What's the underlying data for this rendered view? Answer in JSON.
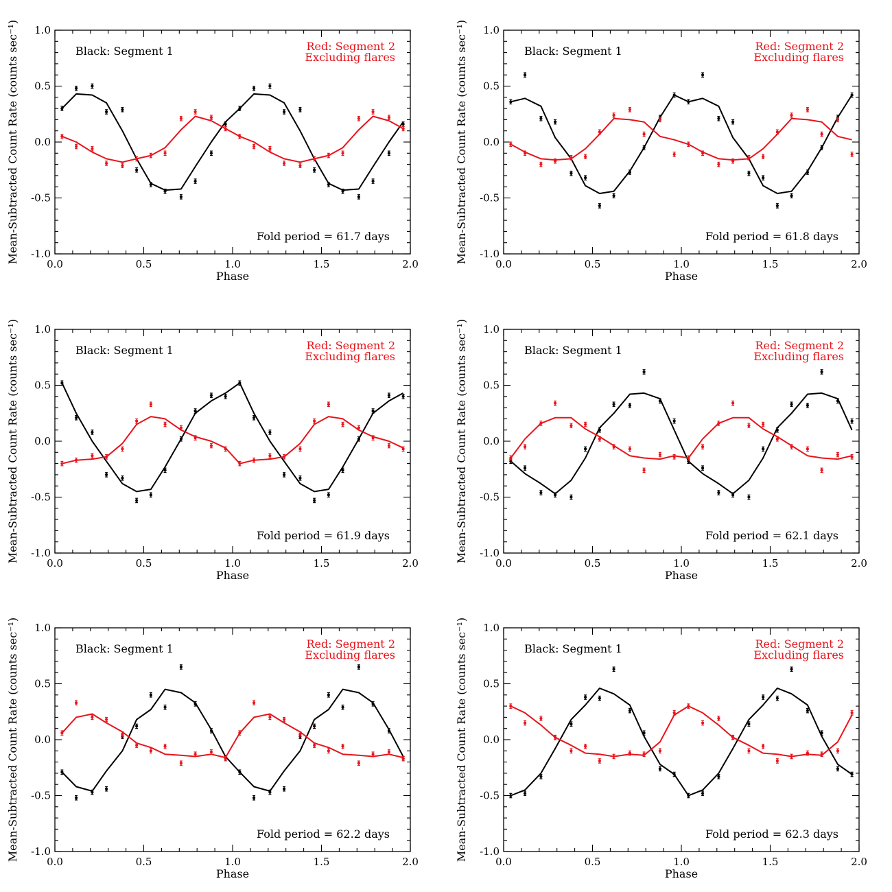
{
  "colors": {
    "segment1": "#000000",
    "segment2": "#e8141b"
  },
  "chart_data": [
    {
      "type": "scatter",
      "title": "",
      "xlabel": "Phase",
      "ylabel": "Mean-Subtracted Count Rate (counts sec⁻¹)",
      "xlim": [
        0.0,
        2.0
      ],
      "ylim": [
        -1.0,
        1.0
      ],
      "xticks": [
        "0.0",
        "0.5",
        "1.0",
        "1.5",
        "2.0"
      ],
      "yticks": [
        "1.0",
        "0.5",
        "0.0",
        "-0.5",
        "-1.0"
      ],
      "legend": [
        "Black: Segment 1",
        "Red: Segment 2",
        "Excluding flares"
      ],
      "annotation": "Fold period = 61.7 days",
      "phase": [
        0.04,
        0.12,
        0.21,
        0.29,
        0.38,
        0.46,
        0.54,
        0.62,
        0.71,
        0.79,
        0.88,
        0.96
      ],
      "series": [
        {
          "name": "Segment 1",
          "points": [
            0.3,
            0.48,
            0.5,
            0.27,
            0.29,
            -0.25,
            -0.38,
            -0.44,
            -0.49,
            -0.35,
            -0.1,
            0.16
          ],
          "fit": [
            0.3,
            0.43,
            0.42,
            0.35,
            0.1,
            -0.15,
            -0.37,
            -0.43,
            -0.42,
            -0.22,
            0.0,
            0.18
          ]
        },
        {
          "name": "Segment 2",
          "points": [
            0.05,
            -0.04,
            -0.06,
            -0.19,
            -0.21,
            -0.15,
            -0.12,
            -0.1,
            0.21,
            0.27,
            0.22,
            0.12
          ],
          "fit": [
            0.05,
            0.0,
            -0.09,
            -0.15,
            -0.18,
            -0.15,
            -0.12,
            -0.05,
            0.11,
            0.23,
            0.19,
            0.12
          ]
        }
      ]
    },
    {
      "type": "scatter",
      "title": "",
      "xlabel": "Phase",
      "ylabel": "Mean-Subtracted Count Rate (counts sec⁻¹)",
      "xlim": [
        0.0,
        2.0
      ],
      "ylim": [
        -1.0,
        1.0
      ],
      "xticks": [
        "0.0",
        "0.5",
        "1.0",
        "1.5",
        "2.0"
      ],
      "yticks": [
        "1.0",
        "0.5",
        "0.0",
        "-0.5",
        "-1.0"
      ],
      "legend": [
        "Black: Segment 1",
        "Red: Segment 2",
        "Excluding flares"
      ],
      "annotation": "Fold period = 61.8 days",
      "phase": [
        0.04,
        0.12,
        0.21,
        0.29,
        0.38,
        0.46,
        0.54,
        0.62,
        0.71,
        0.79,
        0.88,
        0.96
      ],
      "series": [
        {
          "name": "Segment 1",
          "points": [
            0.36,
            0.6,
            0.21,
            0.18,
            -0.28,
            -0.32,
            -0.57,
            -0.48,
            -0.27,
            -0.05,
            0.22,
            0.42
          ],
          "fit": [
            0.36,
            0.39,
            0.32,
            0.04,
            -0.15,
            -0.39,
            -0.46,
            -0.44,
            -0.26,
            -0.05,
            0.22,
            0.42
          ]
        },
        {
          "name": "Segment 2",
          "points": [
            -0.02,
            -0.1,
            -0.2,
            -0.17,
            -0.14,
            -0.13,
            0.09,
            0.24,
            0.29,
            0.07,
            0.2,
            -0.11
          ],
          "fit": [
            -0.02,
            -0.09,
            -0.15,
            -0.16,
            -0.15,
            -0.06,
            0.07,
            0.21,
            0.2,
            0.18,
            0.05,
            0.02
          ]
        }
      ]
    },
    {
      "type": "scatter",
      "title": "",
      "xlabel": "Phase",
      "ylabel": "Mean-Subtracted Count Rate (counts sec⁻¹)",
      "xlim": [
        0.0,
        2.0
      ],
      "ylim": [
        -1.0,
        1.0
      ],
      "xticks": [
        "0.0",
        "0.5",
        "1.0",
        "1.5",
        "2.0"
      ],
      "yticks": [
        "1.0",
        "0.5",
        "0.0",
        "-0.5",
        "-1.0"
      ],
      "legend": [
        "Black: Segment 1",
        "Red: Segment 2",
        "Excluding flares"
      ],
      "annotation": "Fold period = 61.9 days",
      "phase": [
        0.04,
        0.12,
        0.21,
        0.29,
        0.38,
        0.46,
        0.54,
        0.62,
        0.71,
        0.79,
        0.88,
        0.96
      ],
      "series": [
        {
          "name": "Segment 1",
          "points": [
            0.52,
            0.21,
            0.08,
            -0.3,
            -0.33,
            -0.53,
            -0.48,
            -0.26,
            0.02,
            0.27,
            0.41,
            0.4
          ],
          "fit": [
            0.52,
            0.25,
            0.0,
            -0.18,
            -0.38,
            -0.45,
            -0.43,
            -0.23,
            0.02,
            0.25,
            0.36,
            0.43
          ]
        },
        {
          "name": "Segment 2",
          "points": [
            -0.2,
            -0.17,
            -0.13,
            -0.14,
            -0.07,
            0.18,
            0.33,
            0.15,
            0.12,
            0.03,
            -0.04,
            -0.07
          ],
          "fit": [
            -0.2,
            -0.17,
            -0.16,
            -0.14,
            -0.02,
            0.15,
            0.22,
            0.2,
            0.1,
            0.04,
            0.0,
            -0.06
          ]
        }
      ]
    },
    {
      "type": "scatter",
      "title": "",
      "xlabel": "Phase",
      "ylabel": "Mean-Subtracted Count Rate (counts sec⁻¹)",
      "xlim": [
        0.0,
        2.0
      ],
      "ylim": [
        -1.0,
        1.0
      ],
      "xticks": [
        "0.0",
        "0.5",
        "1.0",
        "1.5",
        "2.0"
      ],
      "yticks": [
        "1.0",
        "0.5",
        "0.0",
        "-0.5",
        "-1.0"
      ],
      "legend": [
        "Black: Segment 1",
        "Red: Segment 2",
        "Excluding flares"
      ],
      "annotation": "Fold period = 62.1 days",
      "phase": [
        0.04,
        0.12,
        0.21,
        0.29,
        0.38,
        0.46,
        0.54,
        0.62,
        0.71,
        0.79,
        0.88,
        0.96
      ],
      "series": [
        {
          "name": "Segment 1",
          "points": [
            -0.18,
            -0.24,
            -0.46,
            -0.48,
            -0.5,
            -0.07,
            0.1,
            0.33,
            0.32,
            0.62,
            0.36,
            0.18
          ],
          "fit": [
            -0.18,
            -0.29,
            -0.38,
            -0.47,
            -0.35,
            -0.15,
            0.12,
            0.25,
            0.42,
            0.43,
            0.38,
            0.1
          ]
        },
        {
          "name": "Segment 2",
          "points": [
            -0.15,
            -0.05,
            0.16,
            0.34,
            0.14,
            0.15,
            0.02,
            -0.05,
            -0.07,
            -0.26,
            -0.12,
            -0.14
          ],
          "fit": [
            -0.15,
            0.02,
            0.16,
            0.21,
            0.21,
            0.11,
            0.04,
            -0.04,
            -0.13,
            -0.15,
            -0.16,
            -0.13
          ]
        }
      ]
    },
    {
      "type": "scatter",
      "title": "",
      "xlabel": "Phase",
      "ylabel": "Mean-Subtracted Count Rate (counts sec⁻¹)",
      "xlim": [
        0.0,
        2.0
      ],
      "ylim": [
        -1.0,
        1.0
      ],
      "xticks": [
        "0.0",
        "0.5",
        "1.0",
        "1.5",
        "2.0"
      ],
      "yticks": [
        "1.0",
        "0.5",
        "0.0",
        "-0.5",
        "-1.0"
      ],
      "legend": [
        "Black: Segment 1",
        "Red: Segment 2",
        "Excluding flares"
      ],
      "annotation": "Fold period = 62.2 days",
      "phase": [
        0.04,
        0.12,
        0.21,
        0.29,
        0.38,
        0.46,
        0.54,
        0.62,
        0.71,
        0.79,
        0.88,
        0.96
      ],
      "series": [
        {
          "name": "Segment 1",
          "points": [
            -0.29,
            -0.52,
            -0.47,
            -0.44,
            0.03,
            0.12,
            0.4,
            0.29,
            0.65,
            0.32,
            0.08,
            -0.17
          ],
          "fit": [
            -0.29,
            -0.42,
            -0.46,
            -0.28,
            -0.1,
            0.18,
            0.27,
            0.45,
            0.42,
            0.33,
            0.09,
            -0.15
          ]
        },
        {
          "name": "Segment 2",
          "points": [
            0.06,
            0.33,
            0.2,
            0.18,
            0.05,
            -0.05,
            -0.1,
            -0.06,
            -0.21,
            -0.13,
            -0.11,
            -0.17
          ],
          "fit": [
            0.06,
            0.2,
            0.23,
            0.15,
            0.07,
            -0.03,
            -0.07,
            -0.13,
            -0.14,
            -0.15,
            -0.13,
            -0.16
          ]
        }
      ]
    },
    {
      "type": "scatter",
      "title": "",
      "xlabel": "Phase",
      "ylabel": "Mean-Subtracted Count Rate (counts sec⁻¹)",
      "xlim": [
        0.0,
        2.0
      ],
      "ylim": [
        -1.0,
        1.0
      ],
      "xticks": [
        "0.0",
        "0.5",
        "1.0",
        "1.5",
        "2.0"
      ],
      "yticks": [
        "1.0",
        "0.5",
        "0.0",
        "-0.5",
        "-1.0"
      ],
      "legend": [
        "Black: Segment 1",
        "Red: Segment 2",
        "Excluding flares"
      ],
      "annotation": "Fold period = 62.3 days",
      "phase": [
        0.04,
        0.12,
        0.21,
        0.29,
        0.38,
        0.46,
        0.54,
        0.62,
        0.71,
        0.79,
        0.88,
        0.96
      ],
      "series": [
        {
          "name": "Segment 1",
          "points": [
            -0.5,
            -0.48,
            -0.33,
            0.02,
            0.14,
            0.38,
            0.37,
            0.63,
            0.26,
            0.06,
            -0.26,
            -0.31
          ],
          "fit": [
            -0.5,
            -0.45,
            -0.3,
            -0.08,
            0.18,
            0.31,
            0.46,
            0.41,
            0.31,
            0.03,
            -0.22,
            -0.31
          ]
        },
        {
          "name": "Segment 2",
          "points": [
            0.3,
            0.15,
            0.19,
            0.02,
            -0.1,
            -0.06,
            -0.19,
            -0.15,
            -0.12,
            -0.13,
            -0.1,
            0.24
          ],
          "fit": [
            0.3,
            0.24,
            0.13,
            0.02,
            -0.05,
            -0.12,
            -0.13,
            -0.15,
            -0.13,
            -0.14,
            -0.02,
            0.22
          ]
        }
      ]
    }
  ]
}
